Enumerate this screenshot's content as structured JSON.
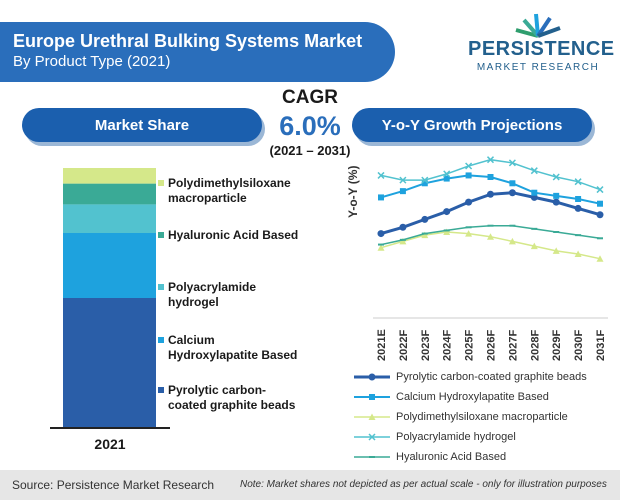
{
  "header": {
    "title": "Europe Urethral Bulking Systems Market",
    "subtitle": "By Product Type (2021)"
  },
  "logo": {
    "name": "PERSISTENCE",
    "sub": "MARKET RESEARCH"
  },
  "pills": {
    "market_share": "Market Share",
    "yoy": "Y-o-Y Growth Projections"
  },
  "cagr": {
    "label": "CAGR",
    "value": "6.0%",
    "range": "(2021 – 2031)"
  },
  "colors": {
    "pyrolytic": "#2a5ea8",
    "calcium": "#1ea2de",
    "polyacrylamide": "#52c2cf",
    "hyaluronic": "#3aaa96",
    "polydimethyl": "#d5e88a"
  },
  "chart_data": [
    {
      "type": "bar",
      "stacked": true,
      "categories": [
        "2021"
      ],
      "series": [
        {
          "name": "Pyrolytic carbon-coated graphite beads",
          "values": [
            50
          ]
        },
        {
          "name": "Calcium Hydroxylapatite Based",
          "values": [
            25
          ]
        },
        {
          "name": "Polyacrylamide hydrogel",
          "values": [
            11
          ]
        },
        {
          "name": "Hyaluronic Acid Based",
          "values": [
            8
          ]
        },
        {
          "name": "Polydimethylsiloxane macroparticle",
          "values": [
            6
          ]
        }
      ],
      "legend": [
        "Polydimethylsiloxane macroparticle",
        "Hyaluronic Acid Based",
        "Polyacrylamide hydrogel",
        "Calcium Hydroxylapatite Based",
        "Pyrolytic carbon-coated graphite beads"
      ],
      "ylim": [
        0,
        100
      ],
      "xlabel": "2021"
    },
    {
      "type": "line",
      "ylabel": "Y-o-Y (%)",
      "categories": [
        "2021E",
        "2022F",
        "2023F",
        "2024F",
        "2025F",
        "2026F",
        "2027F",
        "2028F",
        "2029F",
        "2030F",
        "2031F"
      ],
      "ylim": [
        0,
        10
      ],
      "series": [
        {
          "name": "Pyrolytic carbon-coated graphite beads",
          "values": [
            5.0,
            5.4,
            5.9,
            6.4,
            7.0,
            7.5,
            7.6,
            7.3,
            7.0,
            6.6,
            6.2
          ]
        },
        {
          "name": "Calcium Hydroxylapatite Based",
          "values": [
            7.3,
            7.7,
            8.2,
            8.5,
            8.7,
            8.6,
            8.2,
            7.6,
            7.4,
            7.2,
            6.9
          ]
        },
        {
          "name": "Polydimethylsiloxane macroparticle",
          "values": [
            4.1,
            4.5,
            4.9,
            5.1,
            5.0,
            4.8,
            4.5,
            4.2,
            3.9,
            3.7,
            3.4
          ]
        },
        {
          "name": "Polyacrylamide hydrogel",
          "values": [
            8.7,
            8.4,
            8.4,
            8.8,
            9.3,
            9.7,
            9.5,
            9.0,
            8.6,
            8.3,
            7.8
          ]
        },
        {
          "name": "Hyaluronic Acid Based",
          "values": [
            4.3,
            4.6,
            5.0,
            5.2,
            5.4,
            5.5,
            5.5,
            5.3,
            5.1,
            4.9,
            4.7
          ]
        }
      ],
      "legend": [
        "Pyrolytic carbon-coated graphite beads",
        "Calcium Hydroxylapatite Based",
        "Polydimethylsiloxane macroparticle",
        "Polyacrylamide hydrogel",
        "Hyaluronic Acid Based"
      ]
    }
  ],
  "footer": {
    "source": "Source: Persistence Market Research",
    "note": "Note: Market shares not depicted as per actual scale - only for illustration purposes"
  }
}
